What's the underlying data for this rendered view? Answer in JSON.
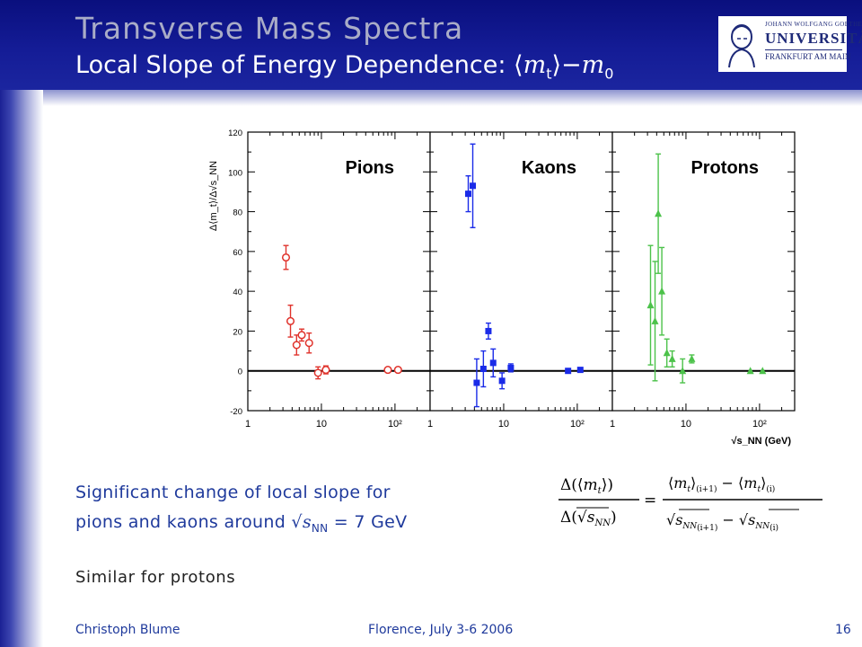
{
  "header": {
    "title": "Transverse Mass Spectra",
    "subtitle_text": "Local Slope of Energy Dependence: ",
    "subtitle_math_open": "⟨",
    "subtitle_math_m": "m",
    "subtitle_math_sub": "t",
    "subtitle_math_close": "⟩−",
    "subtitle_math_m0": "m",
    "subtitle_math_sub0": "0"
  },
  "logo": {
    "line1": "JOHANN WOLFGANG GOETHE",
    "line2": "UNIVERSITÄT",
    "line3": "FRANKFURT AM MAIN"
  },
  "body": {
    "line1": "Significant change of local slope for",
    "line2_pre": "pions and kaons around √",
    "line2_s": "s",
    "line2_sub": "NN",
    "line2_post": " = 7 GeV",
    "similar": "Similar for protons"
  },
  "footer": {
    "author": "Christoph Blume",
    "venue": "Florence, July 3-6 2006",
    "page": "16"
  },
  "colors": {
    "header_bg": "#0a0f7e",
    "title_gray": "#a9acc7",
    "body_blue": "#1f3a9c",
    "pions": "#e0332c",
    "kaons": "#1a2be8",
    "protons": "#4cc24a"
  },
  "chart_data": {
    "type": "scatter",
    "x_scale": "log",
    "xlim": [
      1,
      300
    ],
    "ylim": [
      -20,
      120
    ],
    "yticks": [
      -20,
      0,
      20,
      40,
      60,
      80,
      100,
      120
    ],
    "xtick_labels": [
      "1",
      "10",
      "10²"
    ],
    "ylabel": "Δ⟨m_t⟩/Δ√s_NN",
    "xlabel": "√s_NN (GeV)",
    "panels": [
      {
        "name": "Pions",
        "marker": "circle-open",
        "color": "#e0332c",
        "points": [
          {
            "x": 3.3,
            "y": 57,
            "err": 6
          },
          {
            "x": 3.8,
            "y": 25,
            "err": 8
          },
          {
            "x": 4.6,
            "y": 13,
            "err": 5
          },
          {
            "x": 5.4,
            "y": 18,
            "err": 3
          },
          {
            "x": 6.8,
            "y": 14,
            "err": 5
          },
          {
            "x": 9.0,
            "y": -1,
            "err": 3
          },
          {
            "x": 11.5,
            "y": 0.5,
            "err": 2
          },
          {
            "x": 80,
            "y": 0.5,
            "err": 0.5
          },
          {
            "x": 110,
            "y": 0.5,
            "err": 0.5
          }
        ]
      },
      {
        "name": "Kaons",
        "marker": "square",
        "color": "#1a2be8",
        "points": [
          {
            "x": 3.3,
            "y": 89,
            "err": 9
          },
          {
            "x": 3.8,
            "y": 93,
            "err": 21
          },
          {
            "x": 4.3,
            "y": -6,
            "err": 12
          },
          {
            "x": 5.3,
            "y": 1,
            "err": 9
          },
          {
            "x": 6.2,
            "y": 20,
            "err": 4
          },
          {
            "x": 7.2,
            "y": 4,
            "err": 7
          },
          {
            "x": 9.5,
            "y": -5,
            "err": 4
          },
          {
            "x": 12.5,
            "y": 1.5,
            "err": 2
          },
          {
            "x": 75,
            "y": 0,
            "err": 0.5
          },
          {
            "x": 110,
            "y": 0.5,
            "err": 0.5
          }
        ]
      },
      {
        "name": "Protons",
        "marker": "triangle",
        "color": "#4cc24a",
        "points": [
          {
            "x": 3.3,
            "y": 33,
            "err": 30
          },
          {
            "x": 3.8,
            "y": 25,
            "err": 30
          },
          {
            "x": 4.2,
            "y": 79,
            "err": 30
          },
          {
            "x": 4.7,
            "y": 40,
            "err": 22
          },
          {
            "x": 5.5,
            "y": 9,
            "err": 7
          },
          {
            "x": 6.5,
            "y": 6,
            "err": 4
          },
          {
            "x": 9.0,
            "y": 0,
            "err": 6
          },
          {
            "x": 12.0,
            "y": 6,
            "err": 2
          },
          {
            "x": 75,
            "y": 0,
            "err": 0.5
          },
          {
            "x": 110,
            "y": 0,
            "err": 0.5
          }
        ]
      }
    ]
  }
}
